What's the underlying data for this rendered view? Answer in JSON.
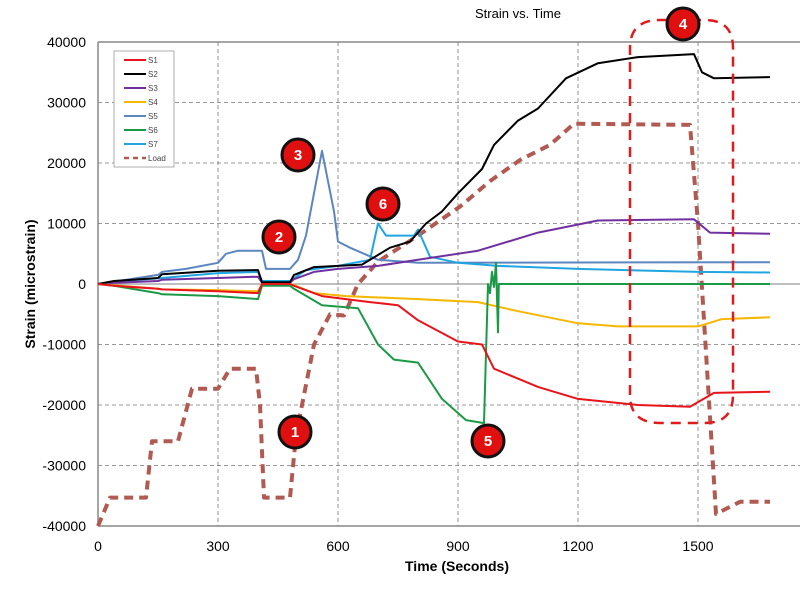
{
  "chart_data": {
    "type": "line",
    "title": "Strain vs. Time",
    "xlabel": "Time (Seconds)",
    "ylabel": "Strain (microstrain)",
    "xlim": [
      0,
      1800
    ],
    "ylim": [
      -40000,
      40000
    ],
    "xticks": [
      "0",
      "300",
      "600",
      "900",
      "1200",
      "1500"
    ],
    "yticks": [
      "40000",
      "30000",
      "20000",
      "10000",
      "0",
      "-10000",
      "-20000",
      "-30000",
      "-40000"
    ],
    "grid": true,
    "legend_position": "top-left",
    "series": [
      {
        "name": "S1",
        "color": "#e8141b",
        "dash": false,
        "x": [
          0,
          40,
          150,
          160,
          300,
          400,
          410,
          480,
          490,
          560,
          680,
          750,
          800,
          900,
          960,
          990,
          1100,
          1200,
          1350,
          1480,
          1540,
          1680
        ],
        "y": [
          0,
          -300,
          -800,
          -900,
          -1200,
          -1500,
          0,
          0,
          -300,
          -2000,
          -3000,
          -3500,
          -6000,
          -9500,
          -10000,
          -14000,
          -17000,
          -19000,
          -20000,
          -20300,
          -18000,
          -17800
        ]
      },
      {
        "name": "S2",
        "color": "#000000",
        "dash": false,
        "x": [
          0,
          40,
          150,
          160,
          300,
          400,
          410,
          480,
          490,
          540,
          600,
          660,
          730,
          780,
          820,
          860,
          900,
          960,
          990,
          1050,
          1100,
          1170,
          1250,
          1350,
          1490,
          1510,
          1540,
          1680
        ],
        "y": [
          0,
          500,
          1000,
          1600,
          2200,
          2300,
          300,
          300,
          1500,
          2800,
          3000,
          3200,
          6000,
          7000,
          10000,
          12000,
          15000,
          19000,
          23000,
          27000,
          29000,
          34000,
          36500,
          37500,
          38000,
          35000,
          34000,
          34200
        ]
      },
      {
        "name": "S3",
        "color": "#7030a0",
        "dash": false,
        "x": [
          0,
          40,
          150,
          160,
          300,
          400,
          410,
          480,
          490,
          540,
          600,
          700,
          800,
          950,
          1100,
          1250,
          1490,
          1530,
          1680
        ],
        "y": [
          0,
          200,
          500,
          700,
          1000,
          1200,
          200,
          200,
          800,
          2000,
          2500,
          3000,
          4000,
          5500,
          8500,
          10500,
          10700,
          8500,
          8300
        ]
      },
      {
        "name": "S4",
        "color": "#f5b700",
        "dash": false,
        "x": [
          0,
          40,
          150,
          160,
          300,
          400,
          410,
          480,
          490,
          540,
          620,
          800,
          950,
          1050,
          1200,
          1300,
          1500,
          1560,
          1680
        ],
        "y": [
          0,
          -200,
          -800,
          -900,
          -1000,
          -1200,
          0,
          0,
          -200,
          -1500,
          -2000,
          -2500,
          -3000,
          -4500,
          -6500,
          -7000,
          -7000,
          -5800,
          -5500
        ]
      },
      {
        "name": "S5",
        "color": "#5b86c0",
        "dash": false,
        "x": [
          0,
          40,
          150,
          160,
          220,
          300,
          320,
          350,
          410,
          420,
          480,
          500,
          520,
          560,
          590,
          600,
          630,
          700,
          800,
          1680
        ],
        "y": [
          0,
          400,
          1500,
          2000,
          2500,
          3500,
          5000,
          5500,
          5500,
          2500,
          2500,
          4000,
          8000,
          22000,
          12000,
          7000,
          6000,
          4000,
          3500,
          3600
        ]
      },
      {
        "name": "S6",
        "color": "#1a9a46",
        "dash": false,
        "x": [
          0,
          40,
          150,
          160,
          300,
          400,
          410,
          480,
          490,
          560,
          650,
          700,
          740,
          800,
          860,
          920,
          965,
          975,
          980,
          985,
          990,
          995,
          1000,
          1002,
          1005,
          1680
        ],
        "y": [
          0,
          -300,
          -1500,
          -1700,
          -2000,
          -2500,
          -300,
          -300,
          -800,
          -3500,
          -4000,
          -10000,
          -12500,
          -13000,
          -19000,
          -22500,
          -23000,
          0,
          -1500,
          2000,
          -500,
          3500,
          -8000,
          0,
          0,
          0
        ]
      },
      {
        "name": "S7",
        "color": "#1fa6e0",
        "dash": false,
        "x": [
          0,
          40,
          160,
          300,
          400,
          410,
          480,
          520,
          600,
          680,
          700,
          720,
          790,
          800,
          830,
          900,
          1000,
          1200,
          1500,
          1680
        ],
        "y": [
          0,
          400,
          1000,
          1800,
          2000,
          500,
          500,
          2300,
          3000,
          4000,
          10000,
          8000,
          8000,
          9000,
          4500,
          3500,
          3000,
          2500,
          2000,
          1900
        ]
      },
      {
        "name": "Load",
        "color": "#b05a52",
        "dash": true,
        "x": [
          0,
          30,
          120,
          135,
          200,
          235,
          300,
          330,
          395,
          405,
          415,
          480,
          495,
          540,
          580,
          615,
          650,
          700,
          800,
          905,
          980,
          1055,
          1130,
          1190,
          1480,
          1500,
          1545,
          1605,
          1680
        ],
        "y": [
          -40000,
          -35300,
          -35300,
          -26000,
          -26000,
          -17300,
          -17300,
          -14000,
          -14000,
          -20000,
          -35300,
          -35300,
          -25000,
          -10000,
          -5000,
          -5200,
          0,
          3700,
          8000,
          12800,
          17000,
          20500,
          23000,
          26500,
          26300,
          10000,
          -38000,
          -36000,
          -36000
        ]
      }
    ],
    "annotations": [
      "1",
      "2",
      "3",
      "4",
      "5",
      "6"
    ]
  }
}
